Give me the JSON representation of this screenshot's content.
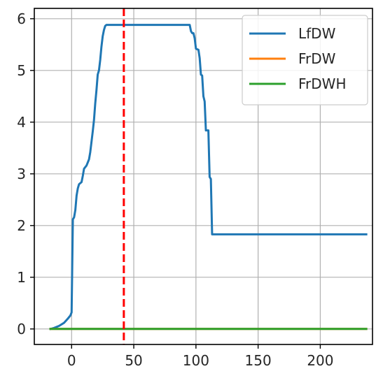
{
  "chart_data": {
    "type": "line",
    "title": "",
    "xlabel": "",
    "ylabel": "",
    "xlim": [
      -30,
      242
    ],
    "ylim": [
      -0.3,
      6.2
    ],
    "xticks": [
      0,
      50,
      100,
      150,
      200
    ],
    "yticks": [
      0,
      1,
      2,
      3,
      4,
      5,
      6
    ],
    "grid": true,
    "legend": "top-right",
    "vline": {
      "x": 42,
      "color": "#ff0000",
      "style": "dashed"
    },
    "series": [
      {
        "name": "LfDW",
        "color": "#1f77b4",
        "points": [
          [
            -17,
            0.0
          ],
          [
            -14,
            0.02
          ],
          [
            -10,
            0.06
          ],
          [
            -6,
            0.12
          ],
          [
            -3,
            0.2
          ],
          [
            -1,
            0.26
          ],
          [
            0,
            0.32
          ],
          [
            1,
            2.12
          ],
          [
            2,
            2.16
          ],
          [
            3,
            2.3
          ],
          [
            4,
            2.58
          ],
          [
            5,
            2.72
          ],
          [
            6,
            2.8
          ],
          [
            8,
            2.84
          ],
          [
            9,
            2.96
          ],
          [
            10,
            3.1
          ],
          [
            12,
            3.16
          ],
          [
            14,
            3.28
          ],
          [
            15,
            3.42
          ],
          [
            17,
            3.82
          ],
          [
            18,
            4.04
          ],
          [
            19,
            4.36
          ],
          [
            20,
            4.62
          ],
          [
            21,
            4.92
          ],
          [
            22,
            5.0
          ],
          [
            23,
            5.2
          ],
          [
            24,
            5.46
          ],
          [
            25,
            5.66
          ],
          [
            26,
            5.78
          ],
          [
            27,
            5.86
          ],
          [
            28,
            5.88
          ],
          [
            35,
            5.88
          ],
          [
            50,
            5.88
          ],
          [
            70,
            5.88
          ],
          [
            88,
            5.88
          ],
          [
            95,
            5.88
          ],
          [
            96,
            5.76
          ],
          [
            97,
            5.72
          ],
          [
            98,
            5.72
          ],
          [
            99,
            5.62
          ],
          [
            100,
            5.42
          ],
          [
            102,
            5.4
          ],
          [
            103,
            5.24
          ],
          [
            104,
            4.92
          ],
          [
            105,
            4.9
          ],
          [
            106,
            4.5
          ],
          [
            107,
            4.4
          ],
          [
            108,
            3.84
          ],
          [
            110,
            3.84
          ],
          [
            111,
            2.94
          ],
          [
            112,
            2.9
          ],
          [
            113,
            1.83
          ],
          [
            120,
            1.83
          ],
          [
            150,
            1.83
          ],
          [
            180,
            1.83
          ],
          [
            210,
            1.83
          ],
          [
            237,
            1.83
          ]
        ]
      },
      {
        "name": "FrDW",
        "color": "#ff7f0e",
        "points": [
          [
            -17,
            0.0
          ],
          [
            237,
            0.0
          ]
        ]
      },
      {
        "name": "FrDWH",
        "color": "#2ca02c",
        "points": [
          [
            -17,
            0.0
          ],
          [
            237,
            0.0
          ]
        ]
      }
    ]
  }
}
